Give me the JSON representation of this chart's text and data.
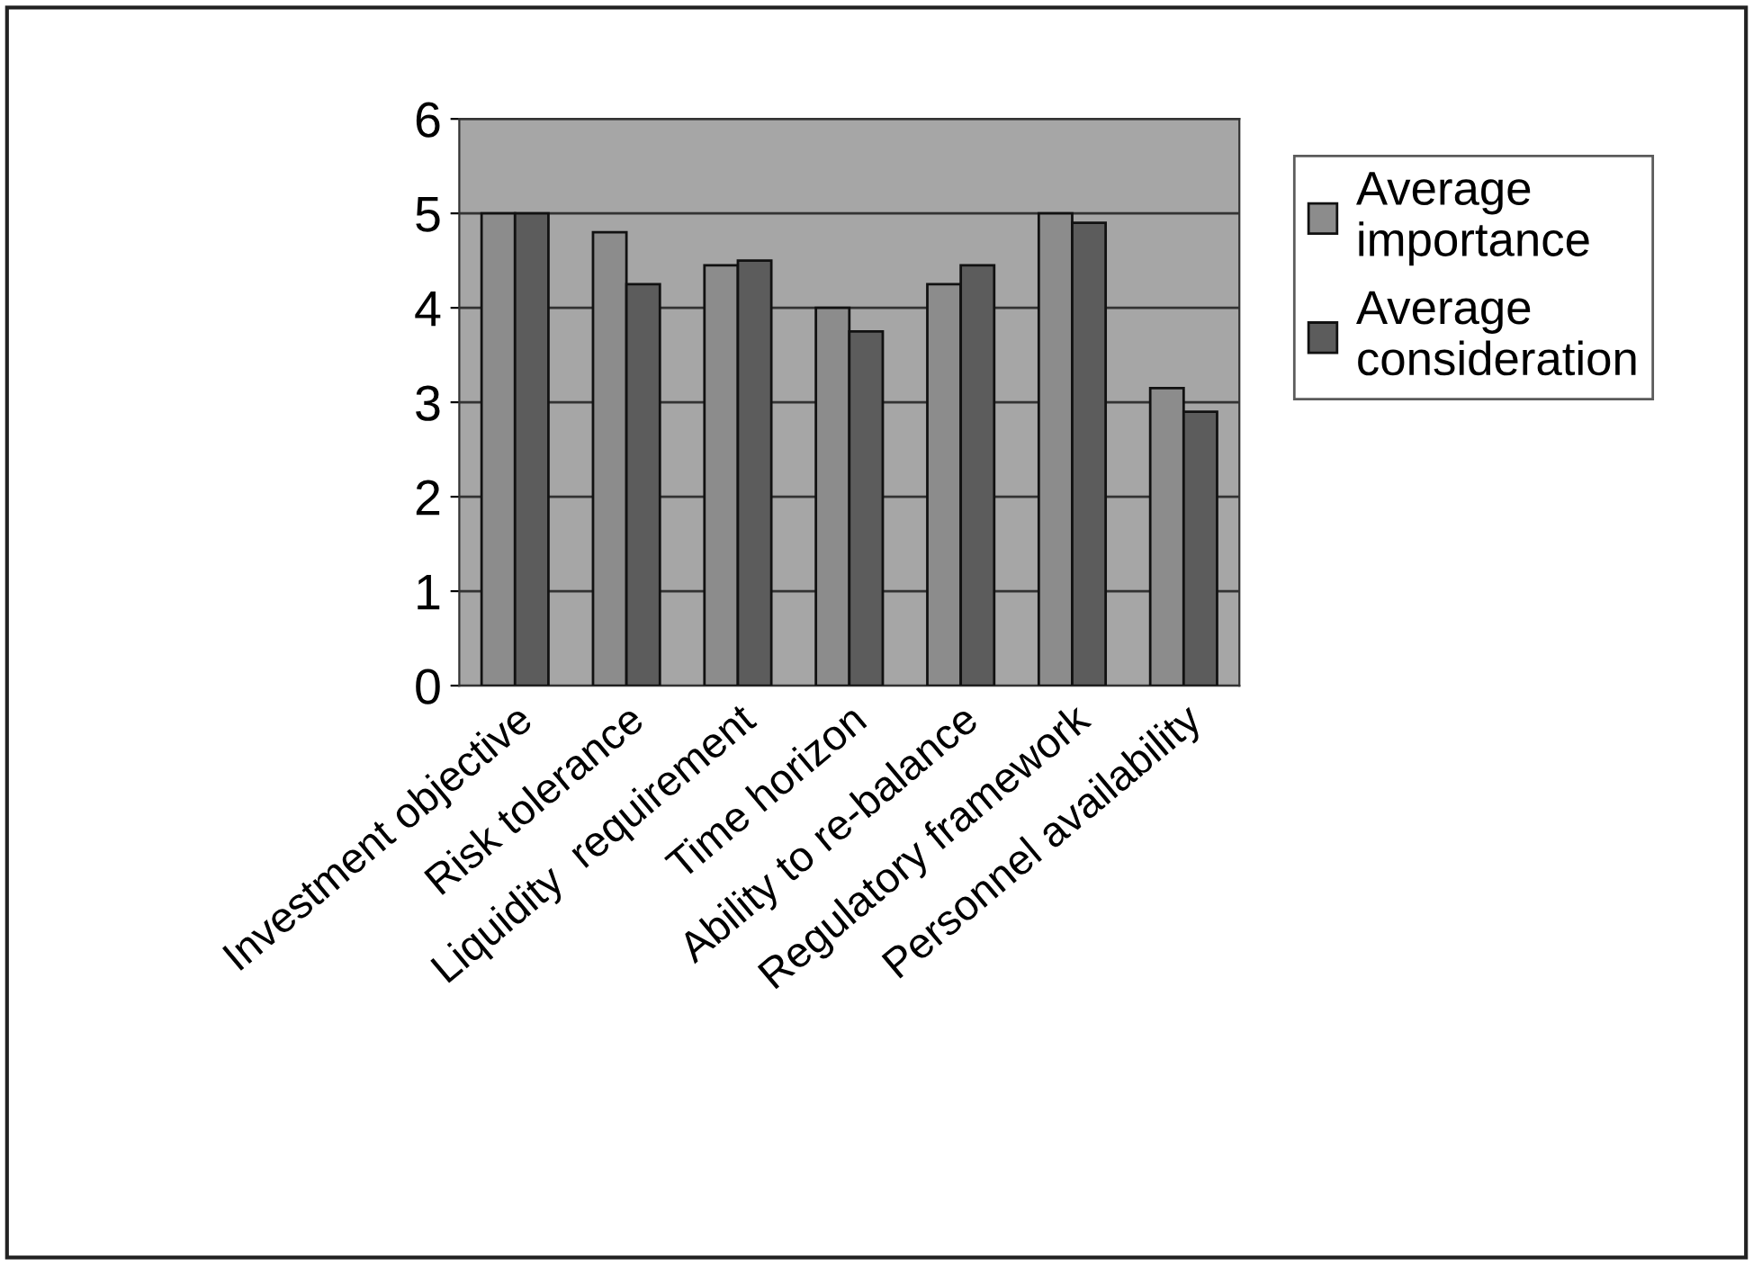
{
  "chart_data": {
    "type": "bar",
    "categories": [
      "Investment objective",
      "Risk tolerance",
      "Liquidity  requirement",
      "Time horizon",
      "Ability to re-balance",
      "Regulatory framework",
      "Personnel availability"
    ],
    "series": [
      {
        "name": "Average importance",
        "color": "#8c8c8c",
        "values": [
          5.0,
          4.8,
          4.45,
          4.0,
          4.25,
          5.0,
          3.15
        ]
      },
      {
        "name": "Average consideration",
        "color": "#5c5c5c",
        "values": [
          5.0,
          4.25,
          4.5,
          3.75,
          4.45,
          4.9,
          2.9
        ]
      }
    ],
    "ylim": [
      0,
      6
    ],
    "yticks": [
      0,
      1,
      2,
      3,
      4,
      5,
      6
    ],
    "grid": "y",
    "legend": "right"
  }
}
